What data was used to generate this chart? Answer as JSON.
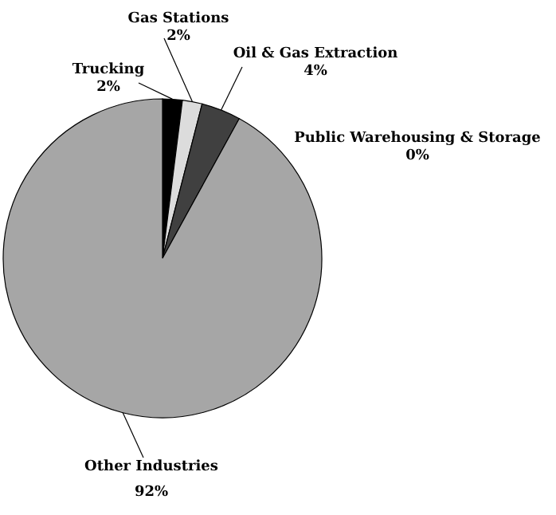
{
  "chart_data": {
    "type": "pie",
    "categories": [
      "Trucking",
      "Gas Stations",
      "Oil & Gas Extraction",
      "Public Warehousing & Storage",
      "Other Industries"
    ],
    "values": [
      2,
      2,
      4,
      0,
      92
    ],
    "value_labels": [
      "2%",
      "2%",
      "4%",
      "0%",
      "92%"
    ],
    "colors": [
      "#000000",
      "#dcdcdc",
      "#404040",
      "#808080",
      "#a6a6a6"
    ]
  }
}
